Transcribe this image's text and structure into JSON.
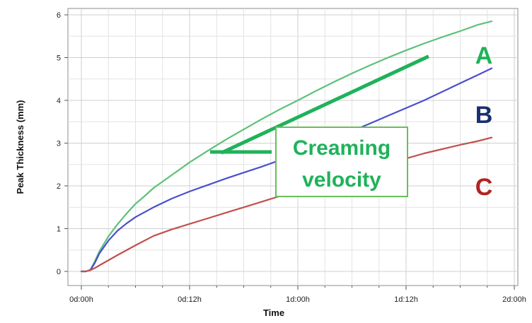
{
  "chart_data": {
    "type": "line",
    "xlabel": "Time",
    "ylabel": "Peak Thickness (mm)",
    "x_ticks": [
      "0d:00h",
      "0d:12h",
      "1d:00h",
      "1d:12h",
      "2d:00h"
    ],
    "x_tick_hours": [
      0,
      12,
      24,
      36,
      48
    ],
    "xlim_hours": [
      0,
      48
    ],
    "ylim": [
      0,
      6
    ],
    "y_ticks": [
      0,
      1,
      2,
      3,
      4,
      5,
      6
    ],
    "grid": true,
    "series": [
      {
        "name": "A",
        "color": "#5cc179",
        "x_hours": [
          0,
          0.5,
          1,
          1.5,
          2,
          3,
          4,
          5,
          6,
          7,
          8,
          10,
          12,
          14,
          16,
          18,
          20,
          22,
          24,
          26,
          28,
          30,
          32,
          34,
          36,
          38,
          40,
          42,
          44,
          45.5
        ],
        "values": [
          0,
          0,
          0.04,
          0.24,
          0.47,
          0.82,
          1.1,
          1.35,
          1.58,
          1.76,
          1.95,
          2.25,
          2.55,
          2.82,
          3.08,
          3.32,
          3.56,
          3.79,
          4.0,
          4.22,
          4.43,
          4.63,
          4.82,
          5.0,
          5.17,
          5.33,
          5.48,
          5.62,
          5.77,
          5.85
        ]
      },
      {
        "name": "B",
        "color": "#4a4fcc",
        "x_hours": [
          0,
          0.5,
          1,
          1.5,
          2,
          3,
          4,
          5,
          6,
          8,
          10,
          12,
          14,
          16,
          18,
          20,
          22,
          24,
          26,
          28,
          30,
          32,
          34,
          36,
          38,
          40,
          42,
          44,
          45.5
        ],
        "values": [
          0,
          0,
          0.03,
          0.2,
          0.42,
          0.72,
          0.95,
          1.12,
          1.27,
          1.5,
          1.7,
          1.87,
          2.02,
          2.17,
          2.31,
          2.45,
          2.6,
          2.76,
          2.92,
          3.1,
          3.28,
          3.46,
          3.64,
          3.82,
          4.0,
          4.2,
          4.4,
          4.6,
          4.75
        ]
      },
      {
        "name": "C",
        "color": "#c0504d",
        "x_hours": [
          0,
          0.5,
          1,
          1.5,
          2,
          4,
          6,
          8,
          10,
          12,
          14,
          16,
          18,
          20,
          22,
          24,
          26,
          28,
          30,
          32,
          34,
          36,
          38,
          40,
          42,
          44,
          45.5
        ],
        "values": [
          0,
          0,
          0.03,
          0.08,
          0.14,
          0.38,
          0.61,
          0.83,
          0.98,
          1.11,
          1.24,
          1.37,
          1.5,
          1.63,
          1.76,
          1.9,
          2.03,
          2.15,
          2.28,
          2.41,
          2.53,
          2.64,
          2.76,
          2.86,
          2.96,
          3.05,
          3.13
        ]
      }
    ],
    "series_labels": [
      {
        "text": "A",
        "color": "#1fb25a"
      },
      {
        "text": "B",
        "color": "#1a2f6e"
      },
      {
        "text": "C",
        "color": "#b22222"
      }
    ],
    "annotation": {
      "lines": [
        "Creaming",
        "velocity"
      ],
      "color": "#1fb25a",
      "box_color": "#6bbd5b",
      "tangent_from": {
        "x_hours": 15.5,
        "y": 2.77
      },
      "tangent_to": {
        "x_hours": 38.5,
        "y": 5.03
      }
    }
  }
}
